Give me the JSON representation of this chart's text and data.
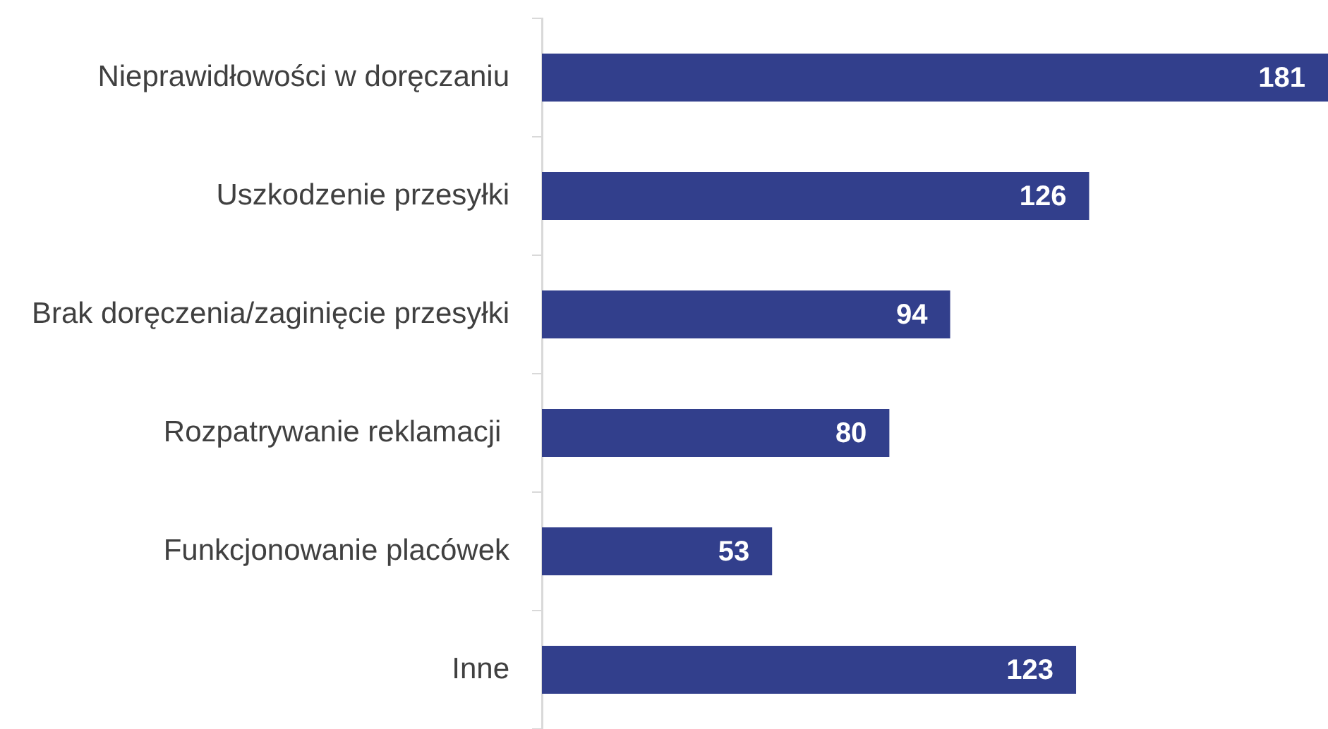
{
  "chart_data": {
    "type": "bar",
    "orientation": "horizontal",
    "categories": [
      "Nieprawidłowości w doręczaniu",
      "Uszkodzenie przesyłki",
      "Brak doręczenia/zaginięcie przesyłki",
      "Rozpatrywanie reklamacji ",
      "Funkcjonowanie placówek",
      "Inne"
    ],
    "values": [
      181,
      126,
      94,
      80,
      53,
      123
    ],
    "color": "#323f8c",
    "data_labels": true
  }
}
